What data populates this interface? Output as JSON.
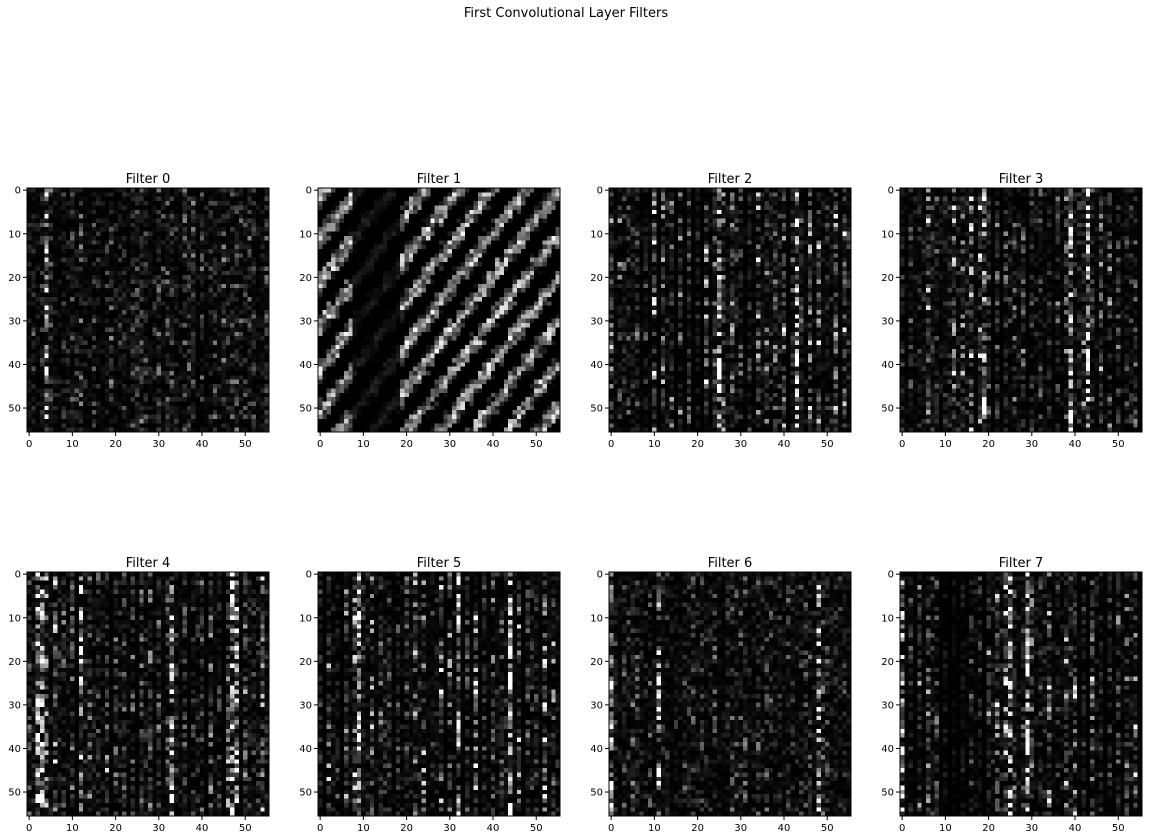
{
  "figure": {
    "suptitle": "First Convolutional Layer Filters"
  },
  "chart_data": {
    "type": "heatmap",
    "colormap": "gray",
    "background": "#ffffff",
    "grid": false,
    "layout": "2 rows x 4 columns",
    "image_size": [
      56,
      56
    ],
    "x_range": [
      -0.5,
      55.5
    ],
    "y_range": [
      55.5,
      -0.5
    ],
    "x_ticks": [
      0,
      10,
      20,
      30,
      40,
      50
    ],
    "y_ticks": [
      0,
      10,
      20,
      30,
      40,
      50
    ],
    "panels": [
      {
        "title": "Filter 0",
        "pattern": "sparse-texture"
      },
      {
        "title": "Filter 1",
        "pattern": "diagonal-texture"
      },
      {
        "title": "Filter 2",
        "pattern": "vertical-stripes"
      },
      {
        "title": "Filter 3",
        "pattern": "vertical-stripes"
      },
      {
        "title": "Filter 4",
        "pattern": "vertical-stripes"
      },
      {
        "title": "Filter 5",
        "pattern": "vertical-stripes"
      },
      {
        "title": "Filter 6",
        "pattern": "sparse-texture"
      },
      {
        "title": "Filter 7",
        "pattern": "vertical-stripes-blotchy"
      }
    ]
  }
}
